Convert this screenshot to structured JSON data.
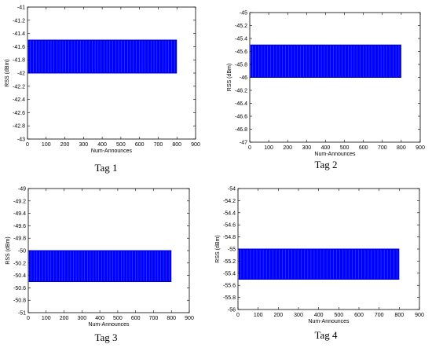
{
  "chart_data": [
    {
      "type": "bar",
      "caption": "Tag 1",
      "xlabel": "Num-Announces",
      "ylabel": "RSS (dBm)",
      "xlim": [
        0,
        900
      ],
      "ylim": [
        -43,
        -41
      ],
      "xticks": [
        0,
        100,
        200,
        300,
        400,
        500,
        600,
        700,
        800,
        900
      ],
      "yticks": [
        -43,
        -42.8,
        -42.6,
        -42.4,
        -42.2,
        -42,
        -41.8,
        -41.6,
        -41.4,
        -41.2,
        -41
      ],
      "series": [
        {
          "x_range": [
            0,
            800
          ],
          "values": [
            -42,
            -41.5
          ]
        }
      ],
      "grid": false,
      "color": "#0000ff"
    },
    {
      "type": "bar",
      "caption": "Tag 2",
      "xlabel": "Num-Announces",
      "ylabel": "RSS (dBm)",
      "xlim": [
        0,
        900
      ],
      "ylim": [
        -47,
        -45
      ],
      "xticks": [
        0,
        100,
        200,
        300,
        400,
        500,
        600,
        700,
        800,
        900
      ],
      "yticks": [
        -47,
        -46.8,
        -46.6,
        -46.4,
        -46.2,
        -46,
        -45.8,
        -45.6,
        -45.4,
        -45.2,
        -45
      ],
      "series": [
        {
          "x_range": [
            0,
            800
          ],
          "values": [
            -46,
            -45.5
          ]
        }
      ],
      "grid": false,
      "color": "#0000ff"
    },
    {
      "type": "bar",
      "caption": "Tag 3",
      "xlabel": "Num-Announces",
      "ylabel": "RSS (dBm)",
      "xlim": [
        0,
        900
      ],
      "ylim": [
        -51,
        -49
      ],
      "xticks": [
        0,
        100,
        200,
        300,
        400,
        500,
        600,
        700,
        800,
        900
      ],
      "yticks": [
        -51,
        -50.8,
        -50.6,
        -50.4,
        -50.2,
        -50,
        -49.8,
        -49.6,
        -49.4,
        -49.2,
        -49
      ],
      "series": [
        {
          "x_range": [
            0,
            800
          ],
          "values": [
            -50.5,
            -50
          ]
        }
      ],
      "grid": false,
      "color": "#0000ff"
    },
    {
      "type": "bar",
      "caption": "Tag 4",
      "xlabel": "Num-Announces",
      "ylabel": "RSS (dBm)",
      "xlim": [
        0,
        900
      ],
      "ylim": [
        -56,
        -54
      ],
      "xticks": [
        0,
        100,
        200,
        300,
        400,
        500,
        600,
        700,
        800,
        900
      ],
      "yticks": [
        -56,
        -55.8,
        -55.6,
        -55.4,
        -55.2,
        -55,
        -54.8,
        -54.6,
        -54.4,
        -54.2,
        -54
      ],
      "series": [
        {
          "x_range": [
            0,
            800
          ],
          "values": [
            -55.5,
            -55
          ]
        }
      ],
      "grid": false,
      "color": "#0000ff"
    }
  ]
}
